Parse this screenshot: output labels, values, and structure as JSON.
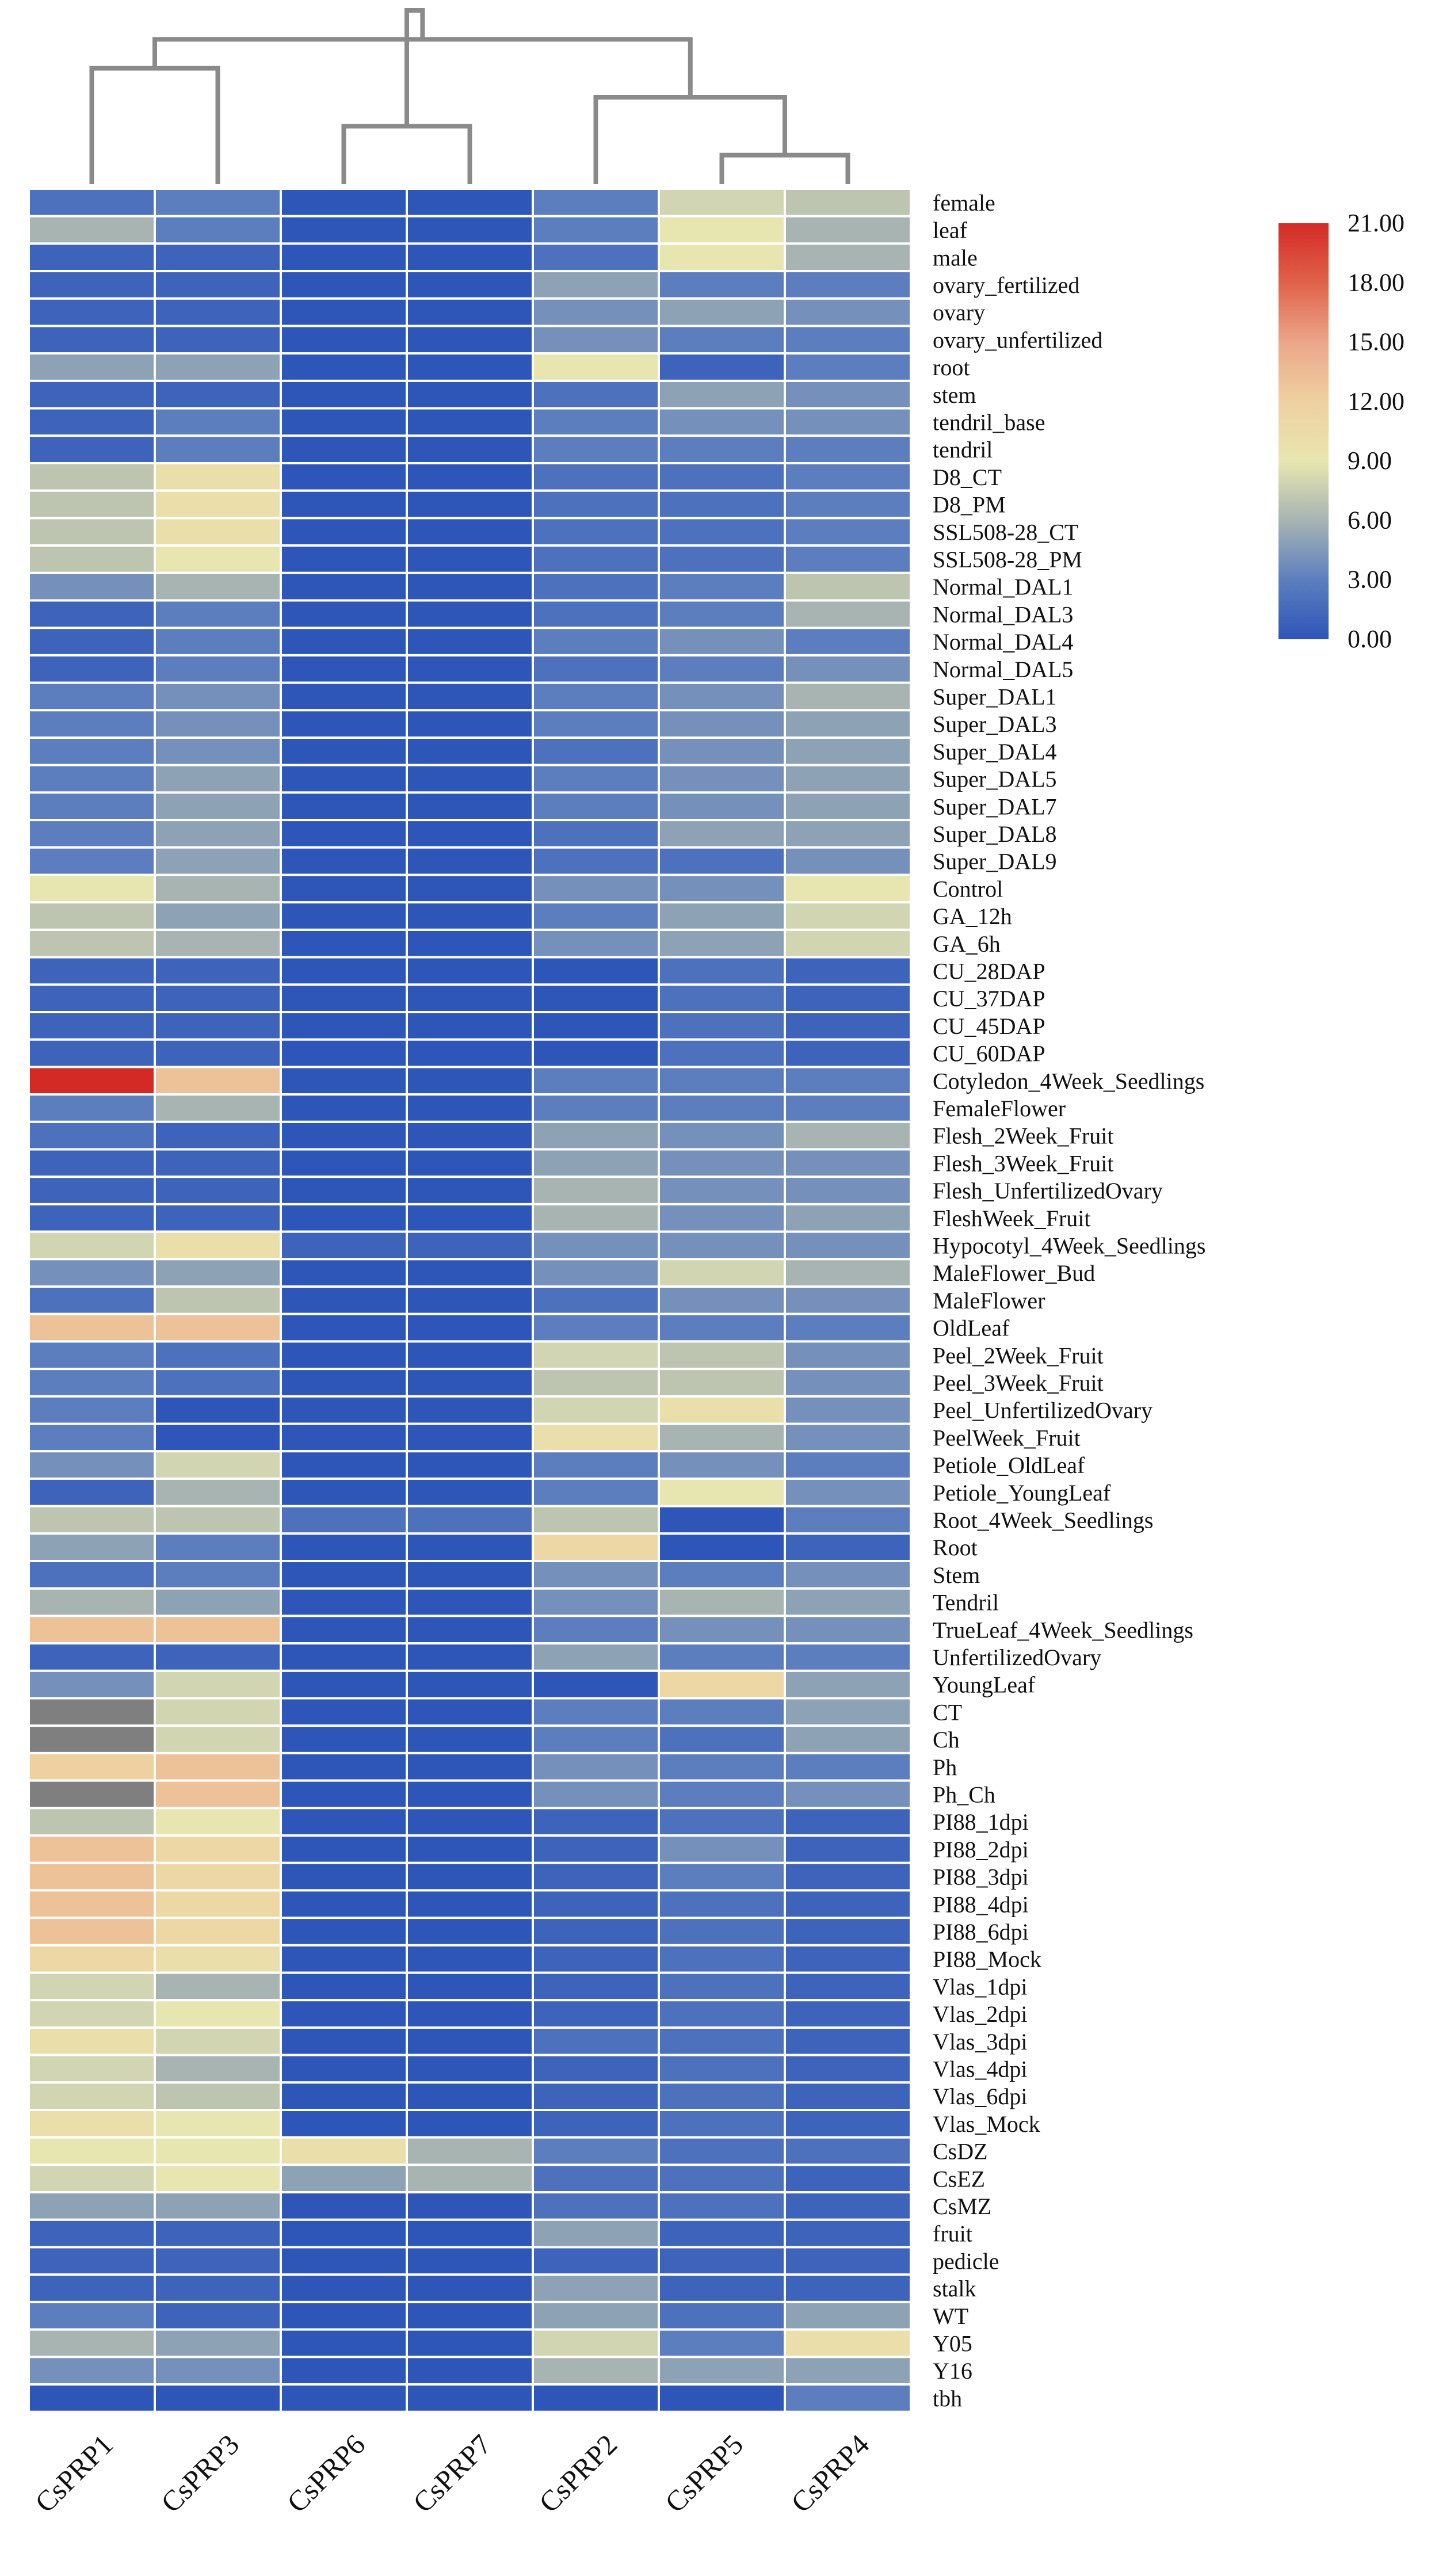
{
  "chart_data": {
    "type": "heatmap",
    "title": "",
    "columns": [
      "CsPRP1",
      "CsPRP3",
      "CsPRP6",
      "CsPRP7",
      "CsPRP2",
      "CsPRP5",
      "CsPRP4"
    ],
    "rows": [
      "female",
      "leaf",
      "male",
      "ovary_fertilized",
      "ovary",
      "ovary_unfertilized",
      "root",
      "stem",
      "tendril_base",
      "tendril",
      "D8_CT",
      "D8_PM",
      "SSL508-28_CT",
      "SSL508-28_PM",
      "Normal_DAL1",
      "Normal_DAL3",
      "Normal_DAL4",
      "Normal_DAL5",
      "Super_DAL1",
      "Super_DAL3",
      "Super_DAL4",
      "Super_DAL5",
      "Super_DAL7",
      "Super_DAL8",
      "Super_DAL9",
      "Control",
      "GA_12h",
      "GA_6h",
      "CU_28DAP",
      "CU_37DAP",
      "CU_45DAP",
      "CU_60DAP",
      "Cotyledon_4Week_Seedlings",
      "FemaleFlower",
      "Flesh_2Week_Fruit",
      "Flesh_3Week_Fruit",
      "Flesh_UnfertilizedOvary",
      "FleshWeek_Fruit",
      "Hypocotyl_4Week_Seedlings",
      "MaleFlower_Bud",
      "MaleFlower",
      "OldLeaf",
      "Peel_2Week_Fruit",
      "Peel_3Week_Fruit",
      "Peel_UnfertilizedOvary",
      "PeelWeek_Fruit",
      "Petiole_OldLeaf",
      "Petiole_YoungLeaf",
      "Root_4Week_Seedlings",
      "Root",
      "Stem",
      "Tendril",
      "TrueLeaf_4Week_Seedlings",
      "UnfertilizedOvary",
      "YoungLeaf",
      "CT",
      "Ch",
      "Ph",
      "Ph_Ch",
      "PI88_1dpi",
      "PI88_2dpi",
      "PI88_3dpi",
      "PI88_4dpi",
      "PI88_6dpi",
      "PI88_Mock",
      "Vlas_1dpi",
      "Vlas_2dpi",
      "Vlas_3dpi",
      "Vlas_4dpi",
      "Vlas_6dpi",
      "Vlas_Mock",
      "CsDZ",
      "CsEZ",
      "CsMZ",
      "fruit",
      "pedicle",
      "stalk",
      "WT",
      "Y05",
      "Y16",
      "tbh"
    ],
    "values": [
      [
        2,
        3,
        0,
        0,
        3,
        8,
        7
      ],
      [
        6,
        3,
        0,
        0,
        3,
        9,
        6
      ],
      [
        1,
        1,
        0,
        0,
        2,
        9,
        6
      ],
      [
        1,
        1,
        0,
        0,
        5,
        3,
        3
      ],
      [
        1,
        1,
        0,
        0,
        4,
        5,
        4
      ],
      [
        1,
        1,
        0,
        0,
        4,
        3,
        3
      ],
      [
        5,
        5,
        0,
        0,
        9,
        1,
        3
      ],
      [
        1,
        1,
        0,
        0,
        2,
        5,
        4
      ],
      [
        1,
        3,
        0,
        0,
        3,
        4,
        4
      ],
      [
        1,
        3,
        0,
        0,
        3,
        3,
        3
      ],
      [
        7,
        10,
        0,
        0,
        2,
        2,
        3
      ],
      [
        7,
        10,
        0,
        0,
        2,
        2,
        3
      ],
      [
        7,
        10,
        0,
        0,
        2,
        2,
        3
      ],
      [
        7,
        9,
        0,
        0,
        2,
        2,
        3
      ],
      [
        4,
        6,
        0,
        0,
        2,
        3,
        7
      ],
      [
        1,
        3,
        0,
        0,
        2,
        3,
        6
      ],
      [
        1,
        3,
        0,
        0,
        3,
        4,
        3
      ],
      [
        1,
        3,
        0,
        0,
        2,
        3,
        4
      ],
      [
        3,
        4,
        0,
        0,
        3,
        4,
        6
      ],
      [
        3,
        4,
        0,
        0,
        3,
        4,
        5
      ],
      [
        3,
        4,
        0,
        0,
        2,
        4,
        5
      ],
      [
        3,
        5,
        0,
        0,
        3,
        4,
        5
      ],
      [
        3,
        5,
        0,
        0,
        3,
        4,
        5
      ],
      [
        3,
        5,
        0,
        0,
        2,
        5,
        5
      ],
      [
        3,
        5,
        0,
        0,
        2,
        2,
        4
      ],
      [
        9,
        6,
        0,
        0,
        4,
        4,
        9
      ],
      [
        7,
        5,
        0,
        0,
        3,
        5,
        8
      ],
      [
        7,
        6,
        0,
        0,
        4,
        5,
        8
      ],
      [
        1,
        1,
        0,
        0,
        0,
        2,
        1
      ],
      [
        1,
        1,
        0,
        0,
        0,
        2,
        1
      ],
      [
        1,
        1,
        0,
        0,
        0,
        2,
        1
      ],
      [
        1,
        1,
        0,
        0,
        0,
        2,
        1
      ],
      [
        21,
        13,
        0,
        0,
        3,
        3,
        3
      ],
      [
        3,
        6,
        0,
        0,
        3,
        3,
        3
      ],
      [
        2,
        1,
        0,
        0,
        5,
        4,
        6
      ],
      [
        1,
        1,
        0,
        0,
        5,
        4,
        4
      ],
      [
        1,
        1,
        0,
        0,
        6,
        4,
        4
      ],
      [
        1,
        1,
        0,
        0,
        6,
        4,
        5
      ],
      [
        8,
        10,
        1,
        1,
        4,
        4,
        4
      ],
      [
        4,
        5,
        0,
        0,
        4,
        8,
        6
      ],
      [
        2,
        7,
        0,
        0,
        2,
        4,
        4
      ],
      [
        13,
        13,
        0,
        0,
        3,
        3,
        3
      ],
      [
        3,
        2,
        0,
        0,
        8,
        7,
        4
      ],
      [
        3,
        2,
        0,
        0,
        7,
        7,
        4
      ],
      [
        3,
        0,
        0,
        0,
        8,
        10,
        4
      ],
      [
        3,
        0,
        0,
        0,
        10,
        6,
        4
      ],
      [
        4,
        8,
        0,
        0,
        3,
        4,
        3
      ],
      [
        1,
        6,
        0,
        0,
        3,
        9,
        4
      ],
      [
        7,
        7,
        2,
        2,
        7,
        0,
        3
      ],
      [
        5,
        3,
        0,
        0,
        11,
        0,
        1
      ],
      [
        2,
        3,
        0,
        0,
        4,
        3,
        4
      ],
      [
        6,
        5,
        0,
        0,
        4,
        6,
        5
      ],
      [
        13,
        13,
        0,
        0,
        3,
        4,
        4
      ],
      [
        1,
        1,
        0,
        0,
        5,
        3,
        3
      ],
      [
        4,
        8,
        0,
        0,
        0,
        11,
        5
      ],
      [
        -1,
        8,
        0,
        0,
        3,
        3,
        5
      ],
      [
        -1,
        8,
        0,
        0,
        3,
        2,
        5
      ],
      [
        12,
        13,
        0,
        0,
        4,
        3,
        3
      ],
      [
        -1,
        13,
        0,
        0,
        4,
        3,
        4
      ],
      [
        7,
        9,
        0,
        0,
        1,
        2,
        1
      ],
      [
        13,
        11,
        0,
        0,
        1,
        4,
        1
      ],
      [
        13,
        11,
        0,
        0,
        1,
        3,
        1
      ],
      [
        13,
        11,
        0,
        0,
        1,
        2,
        1
      ],
      [
        13,
        11,
        0,
        0,
        1,
        2,
        1
      ],
      [
        11,
        10,
        0,
        0,
        1,
        2,
        1
      ],
      [
        8,
        6,
        0,
        0,
        1,
        2,
        1
      ],
      [
        8,
        9,
        0,
        0,
        1,
        2,
        1
      ],
      [
        10,
        8,
        0,
        0,
        2,
        2,
        1
      ],
      [
        8,
        6,
        0,
        0,
        1,
        2,
        1
      ],
      [
        8,
        7,
        0,
        0,
        1,
        2,
        1
      ],
      [
        10,
        9,
        0,
        0,
        1,
        2,
        1
      ],
      [
        9,
        9,
        10,
        6,
        3,
        2,
        2
      ],
      [
        8,
        9,
        5,
        6,
        2,
        2,
        1
      ],
      [
        5,
        5,
        0,
        0,
        2,
        2,
        1
      ],
      [
        1,
        1,
        0,
        0,
        5,
        1,
        1
      ],
      [
        1,
        1,
        0,
        0,
        1,
        1,
        1
      ],
      [
        1,
        1,
        0,
        0,
        5,
        1,
        1
      ],
      [
        3,
        1,
        0,
        0,
        5,
        2,
        5
      ],
      [
        6,
        5,
        0,
        0,
        8,
        3,
        10
      ],
      [
        4,
        4,
        0,
        0,
        6,
        5,
        5
      ],
      [
        0,
        0,
        0,
        0,
        0,
        0,
        3
      ]
    ],
    "color_scale": {
      "min": 0,
      "max": 21,
      "stops": [
        {
          "value": 0,
          "color": "#2e56b8"
        },
        {
          "value": 3,
          "color": "#5c7ebe"
        },
        {
          "value": 6,
          "color": "#a7b4b2"
        },
        {
          "value": 9,
          "color": "#e8e6b0"
        },
        {
          "value": 12,
          "color": "#efd0a0"
        },
        {
          "value": 15,
          "color": "#eba68a"
        },
        {
          "value": 18,
          "color": "#e0624a"
        },
        {
          "value": 21,
          "color": "#d42a25"
        }
      ],
      "missing_color": "#7f7f7f"
    },
    "legend": {
      "position": "top-right",
      "ticks": [
        "21.00",
        "18.00",
        "15.00",
        "12.00",
        "9.00",
        "6.00",
        "3.00",
        "0.00"
      ]
    },
    "dendrogram": {
      "position": "top",
      "merges": [
        [
          5,
          6
        ],
        [
          2,
          3
        ],
        [
          4,
          7
        ],
        [
          0,
          1
        ],
        [
          9,
          10
        ],
        [
          8,
          11
        ]
      ],
      "heights": [
        1,
        2,
        3,
        4,
        5,
        6
      ]
    }
  }
}
